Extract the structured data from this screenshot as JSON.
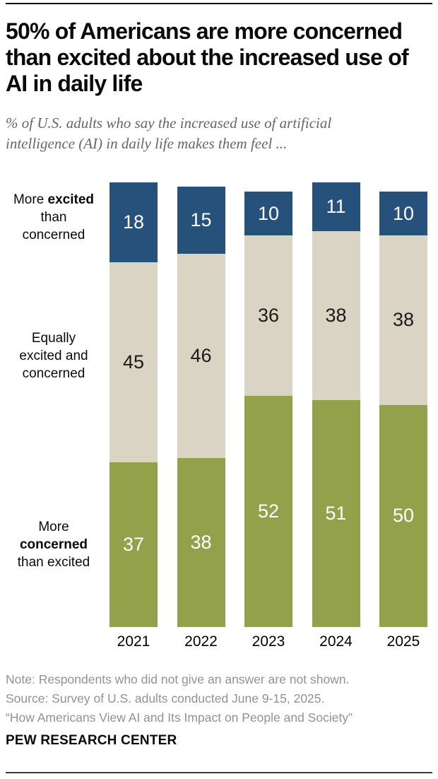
{
  "header": {
    "title": "50% of Americans are more concerned\nthan excited about the increased use of\nAI in daily life",
    "subtitle": "% of U.S. adults who say the increased use of artificial\nintelligence (AI) in daily life makes them feel ..."
  },
  "chart_data": {
    "type": "bar",
    "stacked": true,
    "orientation": "vertical",
    "unit": "percent",
    "categories": [
      "2021",
      "2022",
      "2023",
      "2024",
      "2025"
    ],
    "series": [
      {
        "name": "More excited than concerned",
        "color": "#25517B",
        "label_color": "#FFFFFF",
        "values": [
          18,
          15,
          10,
          11,
          10
        ]
      },
      {
        "name": "Equally excited and concerned",
        "color": "#D9D4C4",
        "label_color": "#1A1A1A",
        "values": [
          45,
          46,
          36,
          38,
          38
        ]
      },
      {
        "name": "More concerned than excited",
        "color": "#94A14B",
        "label_color": "#FFFFFF",
        "values": [
          37,
          38,
          52,
          51,
          50
        ]
      }
    ],
    "ylim": [
      0,
      100
    ],
    "grid": false,
    "legend_position": "left",
    "row_labels": [
      {
        "parts": [
          {
            "text": "More ",
            "bold": false
          },
          {
            "text": "excited",
            "bold": true
          },
          {
            "text": "\nthan\nconcerned",
            "bold": false
          }
        ]
      },
      {
        "parts": [
          {
            "text": "Equally\nexcited and\nconcerned",
            "bold": false
          }
        ]
      },
      {
        "parts": [
          {
            "text": "More\n",
            "bold": false
          },
          {
            "text": "concerned",
            "bold": true
          },
          {
            "text": "\nthan excited",
            "bold": false
          }
        ]
      }
    ]
  },
  "footer": {
    "note": "Note: Respondents who did not give an answer are not shown.",
    "source": "Source: Survey of U.S. adults conducted June 9-15, 2025.",
    "quote": "“How Americans View AI and Its Impact on People and Society”",
    "brand": "PEW RESEARCH CENTER"
  }
}
